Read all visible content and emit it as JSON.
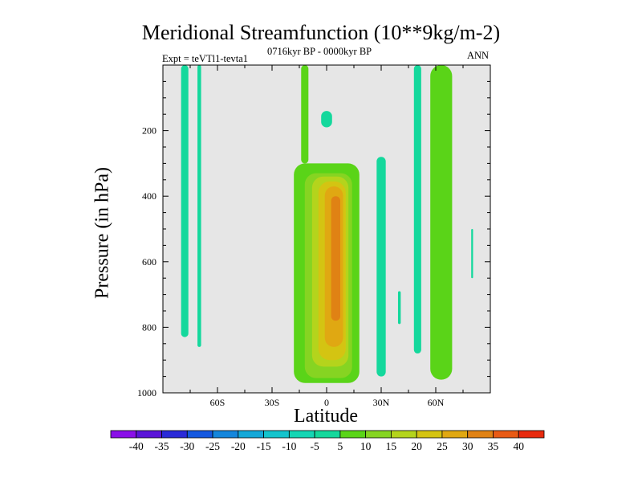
{
  "chart_data": {
    "type": "heatmap",
    "title": "Meridional Streamfunction (10**9kg/m-2)",
    "subtitle_left": "Expt = teVTl1-tevta1",
    "subtitle_center": "0716kyr BP - 0000kyr BP",
    "subtitle_right": "ANN",
    "xlabel": "Latitude",
    "ylabel": "Pressure (in hPa)",
    "xlim": [
      -90,
      90
    ],
    "ylim": [
      1000,
      0
    ],
    "x_ticks": [
      -60,
      -30,
      0,
      30,
      60
    ],
    "x_tick_labels": [
      "60S",
      "30S",
      "0",
      "30N",
      "60N"
    ],
    "y_ticks": [
      200,
      400,
      600,
      800,
      1000
    ],
    "y_tick_labels": [
      "200",
      "400",
      "600",
      "800",
      "1000"
    ],
    "background_color": "#e6e6e6",
    "colorbar": {
      "levels": [
        -40,
        -35,
        -30,
        -25,
        -20,
        -15,
        -10,
        -5,
        5,
        10,
        15,
        20,
        25,
        30,
        35,
        40
      ],
      "labels": [
        "-40",
        "-35",
        "-30",
        "-25",
        "-20",
        "-15",
        "-10",
        "-5",
        "5",
        "10",
        "15",
        "20",
        "25",
        "30",
        "35",
        "40"
      ],
      "colors": [
        "#8a0fe8",
        "#5a14d8",
        "#2a2ad8",
        "#1458e0",
        "#1486dc",
        "#14a8d8",
        "#14c4cc",
        "#14d6b4",
        "#14d89c",
        "#5ad418",
        "#86d422",
        "#b4d41c",
        "#d4c412",
        "#e0a812",
        "#e08214",
        "#e85a14",
        "#e82a0e"
      ]
    },
    "contours": [
      {
        "level": -5,
        "lat_center": -78,
        "lat_width": 4,
        "p_top": 0,
        "p_bottom": 830
      },
      {
        "level": -5,
        "lat_center": -70,
        "lat_width": 2,
        "p_top": 0,
        "p_bottom": 860
      },
      {
        "level": -5,
        "lat_center": 0,
        "lat_width": 6,
        "p_top": 140,
        "p_bottom": 190
      },
      {
        "level": -5,
        "lat_center": 30,
        "lat_width": 5,
        "p_top": 280,
        "p_bottom": 950
      },
      {
        "level": -5,
        "lat_center": 40,
        "lat_width": 1.5,
        "p_top": 690,
        "p_bottom": 790
      },
      {
        "level": -5,
        "lat_center": 50,
        "lat_width": 4,
        "p_top": 0,
        "p_bottom": 880
      },
      {
        "level": -5,
        "lat_center": 80,
        "lat_width": 1,
        "p_top": 500,
        "p_bottom": 650
      },
      {
        "level": 5,
        "lat_center": -12,
        "lat_width": 4,
        "p_top": 0,
        "p_bottom": 300
      },
      {
        "level": 5,
        "lat_center": 0,
        "lat_width": 36,
        "p_top": 300,
        "p_bottom": 970
      },
      {
        "level": 5,
        "lat_center": 63,
        "lat_width": 12,
        "p_top": 0,
        "p_bottom": 960
      },
      {
        "level": 10,
        "lat_center": 1,
        "lat_width": 26,
        "p_top": 330,
        "p_bottom": 955
      },
      {
        "level": 15,
        "lat_center": 2,
        "lat_width": 20,
        "p_top": 340,
        "p_bottom": 920
      },
      {
        "level": 20,
        "lat_center": 3,
        "lat_width": 15,
        "p_top": 355,
        "p_bottom": 900
      },
      {
        "level": 25,
        "lat_center": 4,
        "lat_width": 10,
        "p_top": 370,
        "p_bottom": 860
      },
      {
        "level": 30,
        "lat_center": 5,
        "lat_width": 5,
        "p_top": 400,
        "p_bottom": 780
      }
    ],
    "max_value_approx": 33,
    "min_value_approx": -8
  }
}
